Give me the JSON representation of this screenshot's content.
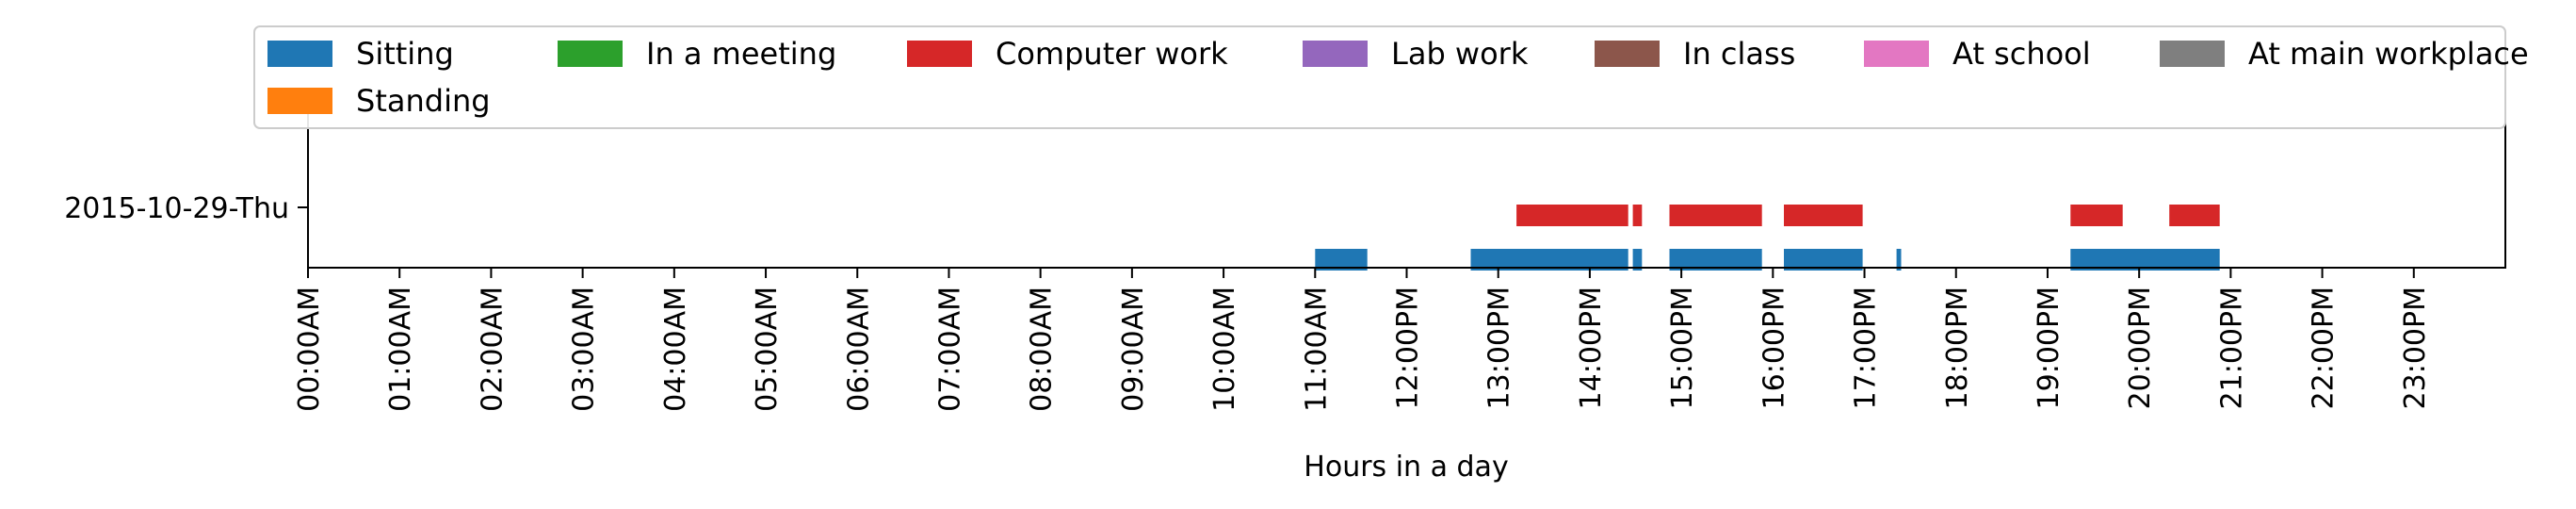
{
  "chart_data": {
    "type": "timeline",
    "xlabel": "Hours in a day",
    "ylabel": "",
    "xlim": [
      0,
      24
    ],
    "x_ticks": [
      {
        "value": 0,
        "label": "00:00AM"
      },
      {
        "value": 1,
        "label": "01:00AM"
      },
      {
        "value": 2,
        "label": "02:00AM"
      },
      {
        "value": 3,
        "label": "03:00AM"
      },
      {
        "value": 4,
        "label": "04:00AM"
      },
      {
        "value": 5,
        "label": "05:00AM"
      },
      {
        "value": 6,
        "label": "06:00AM"
      },
      {
        "value": 7,
        "label": "07:00AM"
      },
      {
        "value": 8,
        "label": "08:00AM"
      },
      {
        "value": 9,
        "label": "09:00AM"
      },
      {
        "value": 10,
        "label": "10:00AM"
      },
      {
        "value": 11,
        "label": "11:00AM"
      },
      {
        "value": 12,
        "label": "12:00PM"
      },
      {
        "value": 13,
        "label": "13:00PM"
      },
      {
        "value": 14,
        "label": "14:00PM"
      },
      {
        "value": 15,
        "label": "15:00PM"
      },
      {
        "value": 16,
        "label": "16:00PM"
      },
      {
        "value": 17,
        "label": "17:00PM"
      },
      {
        "value": 18,
        "label": "18:00PM"
      },
      {
        "value": 19,
        "label": "19:00PM"
      },
      {
        "value": 20,
        "label": "20:00PM"
      },
      {
        "value": 21,
        "label": "21:00PM"
      },
      {
        "value": 22,
        "label": "22:00PM"
      },
      {
        "value": 23,
        "label": "23:00PM"
      }
    ],
    "y_categories": [
      "2015-10-29-Thu"
    ],
    "legend_position": "top",
    "legend": [
      {
        "name": "Sitting",
        "color": "#1f77b4"
      },
      {
        "name": "In a meeting",
        "color": "#2ca02c"
      },
      {
        "name": "Computer work",
        "color": "#d62728"
      },
      {
        "name": "Lab work",
        "color": "#9467bd"
      },
      {
        "name": "In class",
        "color": "#8c564b"
      },
      {
        "name": "At school",
        "color": "#e377c2"
      },
      {
        "name": "At main workplace",
        "color": "#7f7f7f"
      },
      {
        "name": "Standing",
        "color": "#ff7f0e"
      }
    ],
    "series": [
      {
        "name": "Sitting",
        "color": "#1f77b4",
        "intervals": [
          [
            11.0,
            11.57
          ],
          [
            12.7,
            14.42
          ],
          [
            14.47,
            14.57
          ],
          [
            14.87,
            15.88
          ],
          [
            16.12,
            16.98
          ],
          [
            17.35,
            17.4
          ],
          [
            19.25,
            20.88
          ]
        ]
      },
      {
        "name": "Computer work",
        "color": "#d62728",
        "intervals": [
          [
            13.2,
            14.42
          ],
          [
            14.47,
            14.57
          ],
          [
            14.87,
            15.88
          ],
          [
            16.12,
            16.98
          ],
          [
            19.25,
            19.82
          ],
          [
            20.33,
            20.88
          ]
        ]
      }
    ]
  }
}
